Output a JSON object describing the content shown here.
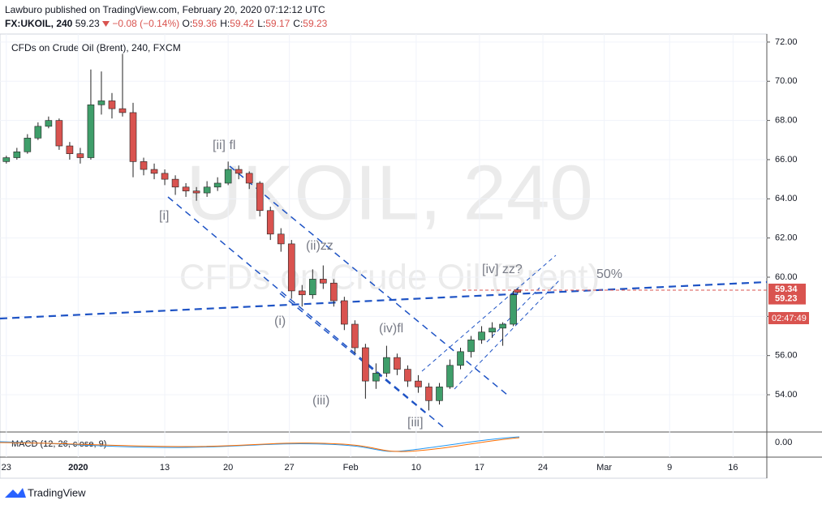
{
  "header": {
    "publisher": "Lawburo published on TradingView.com, February 20, 2020 07:12:12 UTC",
    "symbol": "FX:UKOIL, 240",
    "last": "59.23",
    "change": "−0.08 (−0.14%)",
    "ohlc": [
      {
        "label": "O:",
        "value": "59.36"
      },
      {
        "label": "H:",
        "value": "59.42"
      },
      {
        "label": "L:",
        "value": "59.17"
      },
      {
        "label": "C:",
        "value": "59.23"
      }
    ]
  },
  "footer": {
    "brand": "TradingView"
  },
  "chart_data": {
    "type": "candlestick",
    "title": "CFDs on Crude Oil (Brent), 240, FXCM",
    "watermark": [
      "UKOIL, 240",
      "CFDs on Crude Oil (Brent)"
    ],
    "up_color": "#3f9e6a",
    "down_color": "#d9534f",
    "x": [
      0,
      5,
      10,
      15,
      20,
      25,
      30,
      35,
      40,
      45,
      50,
      55,
      60,
      65,
      70,
      75,
      80,
      85,
      90,
      95,
      100,
      105,
      110,
      115,
      120,
      125,
      130,
      135,
      140,
      145,
      150,
      155,
      160,
      165,
      170,
      175,
      180,
      185,
      190,
      195,
      200,
      205,
      210,
      215,
      220,
      225,
      230,
      235,
      240,
      242
    ],
    "open": [
      65.9,
      66.1,
      66.4,
      67.1,
      67.7,
      68.0,
      66.7,
      66.3,
      66.1,
      68.8,
      69.0,
      68.6,
      68.4,
      65.9,
      65.5,
      65.3,
      65.0,
      64.6,
      64.4,
      64.3,
      64.6,
      64.8,
      65.5,
      65.3,
      64.8,
      63.4,
      62.2,
      61.7,
      59.3,
      59.1,
      59.9,
      59.7,
      58.8,
      57.6,
      56.4,
      54.7,
      55.1,
      55.9,
      55.3,
      54.7,
      54.4,
      53.7,
      54.4,
      55.5,
      56.2,
      56.8,
      57.2,
      57.4,
      57.6,
      59.36
    ],
    "high": [
      66.2,
      66.6,
      67.3,
      67.9,
      68.2,
      68.1,
      66.9,
      66.6,
      70.6,
      70.5,
      69.4,
      71.4,
      68.9,
      66.1,
      65.8,
      65.5,
      65.2,
      64.8,
      64.6,
      64.9,
      65.1,
      65.9,
      65.7,
      65.4,
      64.9,
      63.6,
      62.5,
      61.9,
      59.6,
      60.4,
      60.6,
      59.9,
      59.0,
      57.8,
      56.6,
      55.6,
      56.5,
      56.1,
      55.5,
      55.0,
      54.6,
      54.6,
      55.8,
      56.4,
      57.0,
      57.5,
      57.7,
      57.7,
      59.3,
      59.42
    ],
    "low": [
      65.8,
      66.0,
      66.3,
      67.0,
      67.6,
      66.5,
      66.0,
      65.8,
      66.0,
      68.3,
      68.1,
      68.2,
      65.1,
      65.2,
      65.0,
      64.7,
      64.2,
      64.1,
      63.9,
      64.1,
      64.4,
      64.7,
      65.0,
      64.5,
      63.1,
      61.9,
      61.3,
      58.9,
      58.5,
      58.9,
      59.4,
      58.5,
      57.3,
      56.1,
      53.8,
      54.3,
      54.9,
      55.0,
      54.4,
      54.1,
      53.2,
      53.5,
      54.3,
      55.3,
      55.9,
      56.6,
      56.9,
      56.5,
      57.5,
      59.17
    ],
    "close": [
      66.1,
      66.4,
      67.1,
      67.7,
      68.0,
      66.7,
      66.3,
      66.1,
      68.8,
      69.0,
      68.6,
      68.4,
      65.9,
      65.5,
      65.3,
      65.0,
      64.6,
      64.4,
      64.3,
      64.6,
      64.8,
      65.5,
      65.3,
      64.8,
      63.4,
      62.2,
      61.7,
      59.3,
      59.1,
      59.9,
      59.7,
      58.8,
      57.6,
      56.4,
      54.7,
      55.1,
      55.9,
      55.3,
      54.7,
      54.4,
      53.7,
      54.4,
      55.5,
      56.2,
      56.8,
      57.2,
      57.4,
      57.6,
      59.1,
      59.23
    ],
    "xlim": [
      -3,
      360
    ],
    "xticks": [
      {
        "value": 0,
        "label": "23"
      },
      {
        "value": 34,
        "label": "2020"
      },
      {
        "value": 75,
        "label": "13"
      },
      {
        "value": 105,
        "label": "20"
      },
      {
        "value": 134,
        "label": "27"
      },
      {
        "value": 163,
        "label": "Feb"
      },
      {
        "value": 194,
        "label": "10"
      },
      {
        "value": 224,
        "label": "17"
      },
      {
        "value": 254,
        "label": "24"
      },
      {
        "value": 283,
        "label": "Mar"
      },
      {
        "value": 314,
        "label": "9"
      },
      {
        "value": 344,
        "label": "16"
      }
    ],
    "ylim": [
      52.14,
      72.41
    ],
    "yticks": [
      {
        "value": 54,
        "label": "54.00"
      },
      {
        "value": 56,
        "label": "56.00"
      },
      {
        "value": 58,
        "label": "58.00"
      },
      {
        "value": 60,
        "label": "60.00"
      },
      {
        "value": 62,
        "label": "62.00"
      },
      {
        "value": 64,
        "label": "64.00"
      },
      {
        "value": 66,
        "label": "66.00"
      },
      {
        "value": 68,
        "label": "68.00"
      },
      {
        "value": 70,
        "label": "70.00"
      },
      {
        "value": 72,
        "label": "72.00"
      }
    ],
    "grid": true,
    "price_labels": [
      {
        "value": 59.34,
        "label": "59.34"
      },
      {
        "value": 59.23,
        "label": "59.23"
      }
    ],
    "countdown": "02:47:49",
    "annotations": [
      "[ii] fl",
      "[i]",
      "(ii)zz",
      "(i)",
      "(iv)fl",
      "(iii)",
      "[iii]",
      "[iv] zz?",
      "50%"
    ],
    "indicator": {
      "label": "MACD (12, 26, close, 9)",
      "yticks": [
        {
          "value": 0,
          "label": "0.00"
        }
      ]
    }
  }
}
